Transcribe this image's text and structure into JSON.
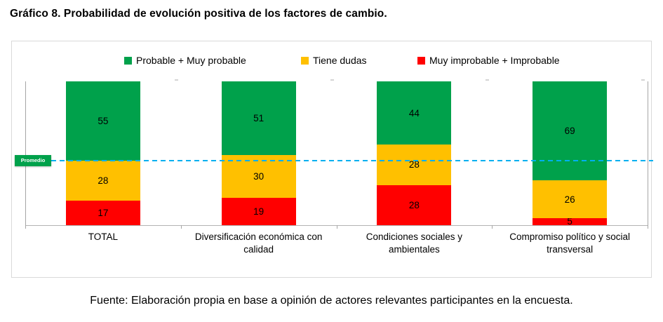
{
  "title": "Gráfico 8. Probabilidad de evolución positiva de los factores de cambio.",
  "source": "Fuente: Elaboración propia en base a opinión de actores relevantes participantes en la encuesta.",
  "colors": {
    "probable": "#00A14B",
    "dudas": "#FFC000",
    "improbable": "#FF0000",
    "reference_line": "#00B0F0",
    "reference_label_bg": "#00A14B",
    "axis": "#A6A6A6"
  },
  "reference": {
    "label": "Promedio",
    "value": 45
  },
  "chart_data": {
    "type": "bar",
    "stacked": true,
    "title": "Gráfico 8. Probabilidad de evolución positiva de los factores de cambio.",
    "categories": [
      "TOTAL",
      "Diversificación económica con calidad",
      "Condiciones sociales y ambientales",
      "Compromiso político y social transversal"
    ],
    "series": [
      {
        "name": "Probable + Muy probable",
        "color": "#00A14B",
        "values": [
          55,
          51,
          44,
          69
        ]
      },
      {
        "name": "Tiene dudas",
        "color": "#FFC000",
        "values": [
          28,
          30,
          28,
          26
        ]
      },
      {
        "name": "Muy improbable + Improbable",
        "color": "#FF0000",
        "values": [
          17,
          19,
          28,
          5
        ]
      }
    ],
    "xlabel": "",
    "ylabel": "",
    "ylim": [
      0,
      100
    ],
    "grid": false,
    "legend_position": "top",
    "reference_line": {
      "label": "Promedio",
      "value": 45,
      "style": "dashed",
      "color": "#00B0F0"
    }
  }
}
